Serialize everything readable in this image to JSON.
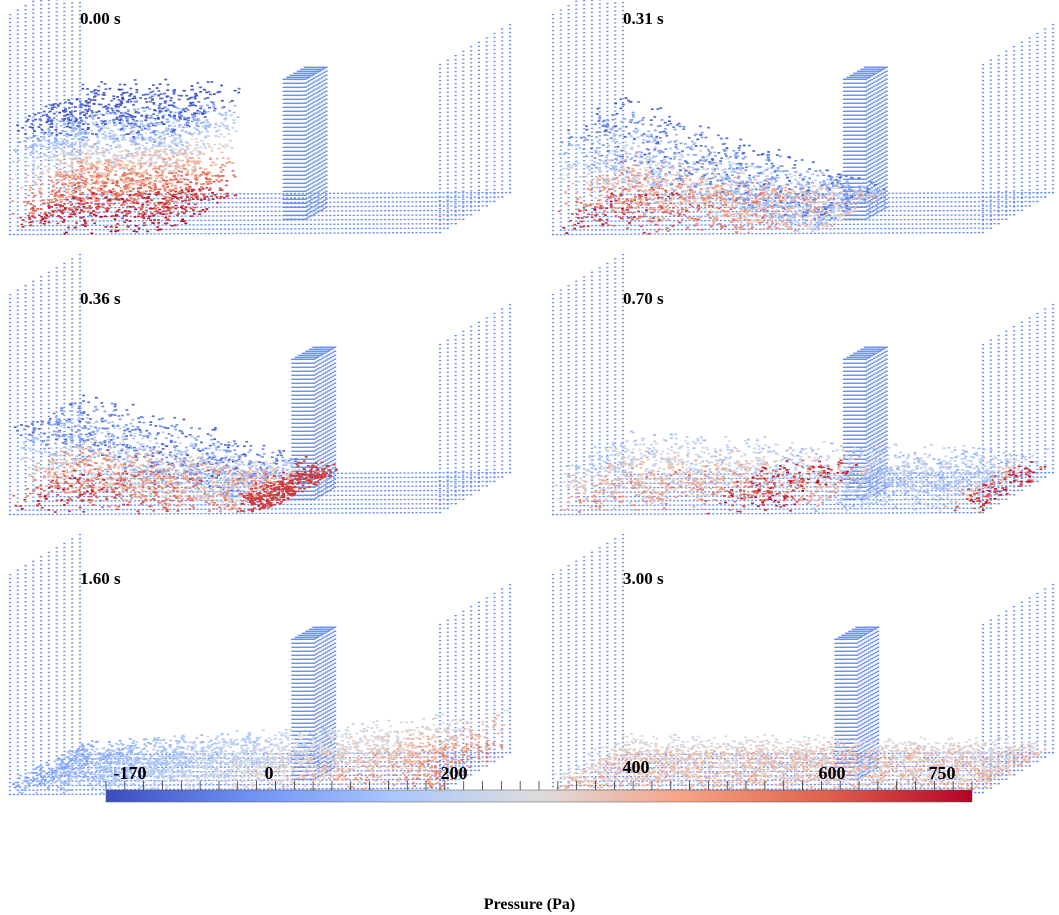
{
  "panels": [
    {
      "time": "0.00 s",
      "state": "initial"
    },
    {
      "time": "0.31 s",
      "state": "advancing"
    },
    {
      "time": "0.36 s",
      "state": "impact"
    },
    {
      "time": "0.70 s",
      "state": "overtopping"
    },
    {
      "time": "1.60 s",
      "state": "reflection"
    },
    {
      "time": "3.00 s",
      "state": "settling"
    }
  ],
  "colorbar": {
    "title": "Pressure (Pa)",
    "min": -170,
    "max": 750,
    "tick_labels": [
      {
        "text": "-170",
        "value": -170
      },
      {
        "text": "0",
        "value": 0
      },
      {
        "text": "200",
        "value": 200
      },
      {
        "text": "400",
        "value": 400
      },
      {
        "text": "600",
        "value": 600
      },
      {
        "text": "750",
        "value": 750
      }
    ],
    "colors": [
      "#3b4cc0",
      "#6f92f3",
      "#aac7fd",
      "#dddddd",
      "#f6a385",
      "#de604d",
      "#b40426"
    ]
  },
  "particle_color": "#6a8ff0"
}
